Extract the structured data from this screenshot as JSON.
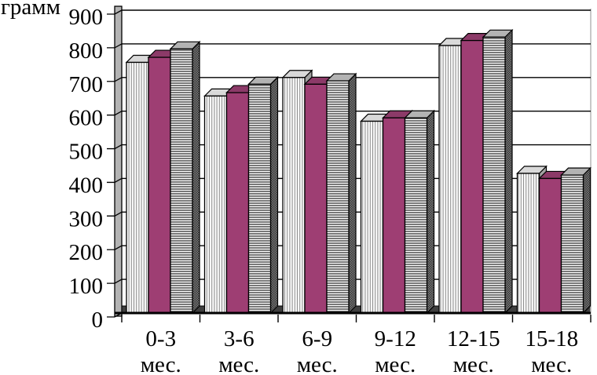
{
  "figure": {
    "kind": "grouped-bar-chart-3d"
  },
  "chart_data": {
    "type": "bar",
    "title": "",
    "xlabel": "",
    "ylabel": "грамм",
    "ylim": [
      0,
      900
    ],
    "ytick_step": 100,
    "ytick_labels": [
      "900",
      "800",
      "700",
      "600",
      "500",
      "400",
      "300",
      "200",
      "100",
      "0"
    ],
    "categories": [
      "0-3",
      "3-6",
      "6-9",
      "9-12",
      "12-15",
      "15-18"
    ],
    "category_unit": "мес.",
    "grid": true,
    "legend": false,
    "style": "3d-extruded-bars",
    "series": [
      {
        "name": "series-1-vertical-stripes",
        "pattern": "vertical-stripes",
        "color": "#ffffff",
        "values": [
          745,
          645,
          700,
          570,
          795,
          415
        ]
      },
      {
        "name": "series-2-solid-magenta",
        "pattern": "solid",
        "color": "#9E3E73",
        "values": [
          760,
          655,
          680,
          580,
          810,
          400
        ]
      },
      {
        "name": "series-3-horizontal-stripes",
        "pattern": "horizontal-stripes",
        "color": "#ffffff",
        "values": [
          785,
          680,
          690,
          580,
          820,
          410
        ]
      }
    ],
    "colors": {
      "magenta": "#9E3E73",
      "grid": "#000000",
      "wall": "#b3b3b3",
      "floor": "#3f3f3f",
      "text": "#000000"
    }
  }
}
